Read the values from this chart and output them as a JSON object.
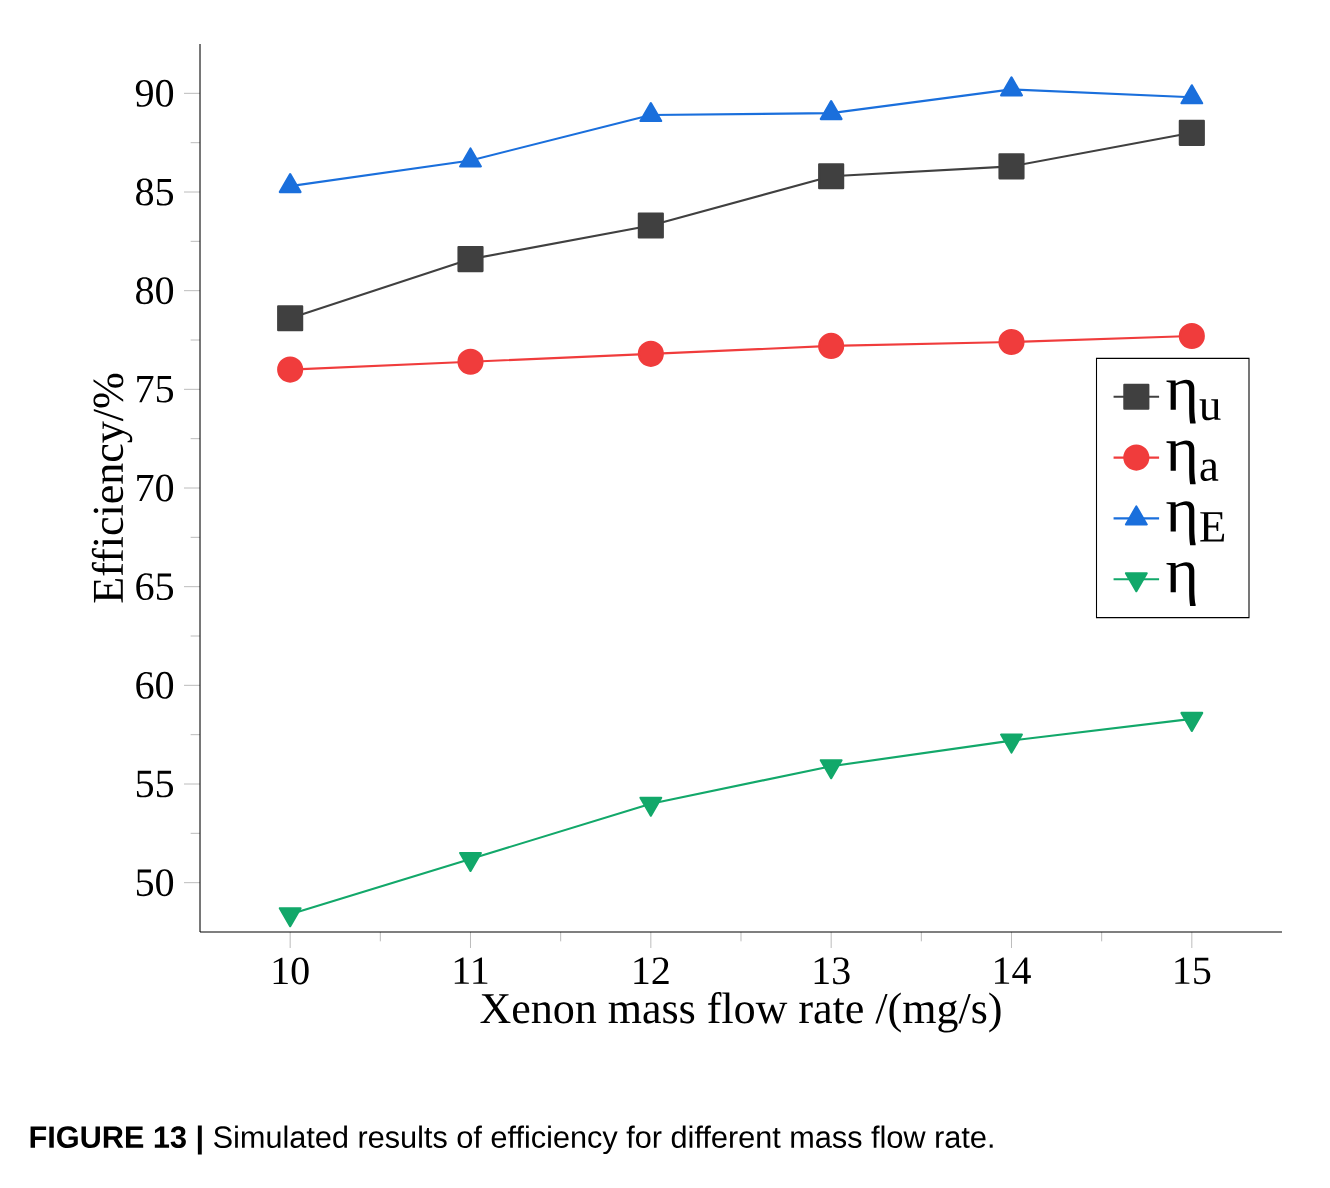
{
  "chart_data": {
    "type": "line",
    "xlabel": "Xenon mass flow rate /(mg/s)",
    "ylabel": "Efficiency/%",
    "x": [
      10,
      11,
      12,
      13,
      14,
      15
    ],
    "series": [
      {
        "name": "η$_{u}$",
        "color": "#404040",
        "marker": "square",
        "values": [
          78.6,
          81.6,
          83.3,
          85.8,
          86.3,
          88.0
        ]
      },
      {
        "name": "η$_{a}$",
        "color": "#f03c3c",
        "marker": "circle",
        "values": [
          76.0,
          76.4,
          76.8,
          77.2,
          77.4,
          77.7
        ]
      },
      {
        "name": "η$_{E}$",
        "color": "#1a6fdc",
        "marker": "triangle",
        "values": [
          85.3,
          86.6,
          88.9,
          89.0,
          90.2,
          89.8
        ]
      },
      {
        "name": "η",
        "color": "#12a86a",
        "marker": "triangle-down",
        "values": [
          48.4,
          51.2,
          54.0,
          55.9,
          57.2,
          58.3
        ]
      }
    ],
    "xlim": [
      9.5,
      15.5
    ],
    "xticks": [
      10,
      11,
      12,
      13,
      14,
      15
    ],
    "ylim": [
      47.5,
      92.5
    ],
    "yticks": [
      50,
      55,
      60,
      65,
      70,
      75,
      80,
      85,
      90
    ],
    "grid": false,
    "legend": "right",
    "line_style": "solid",
    "annotations": [
      "**FIGURE 13 |** Simulated results of efficiency for different mass flow rate."
    ]
  }
}
